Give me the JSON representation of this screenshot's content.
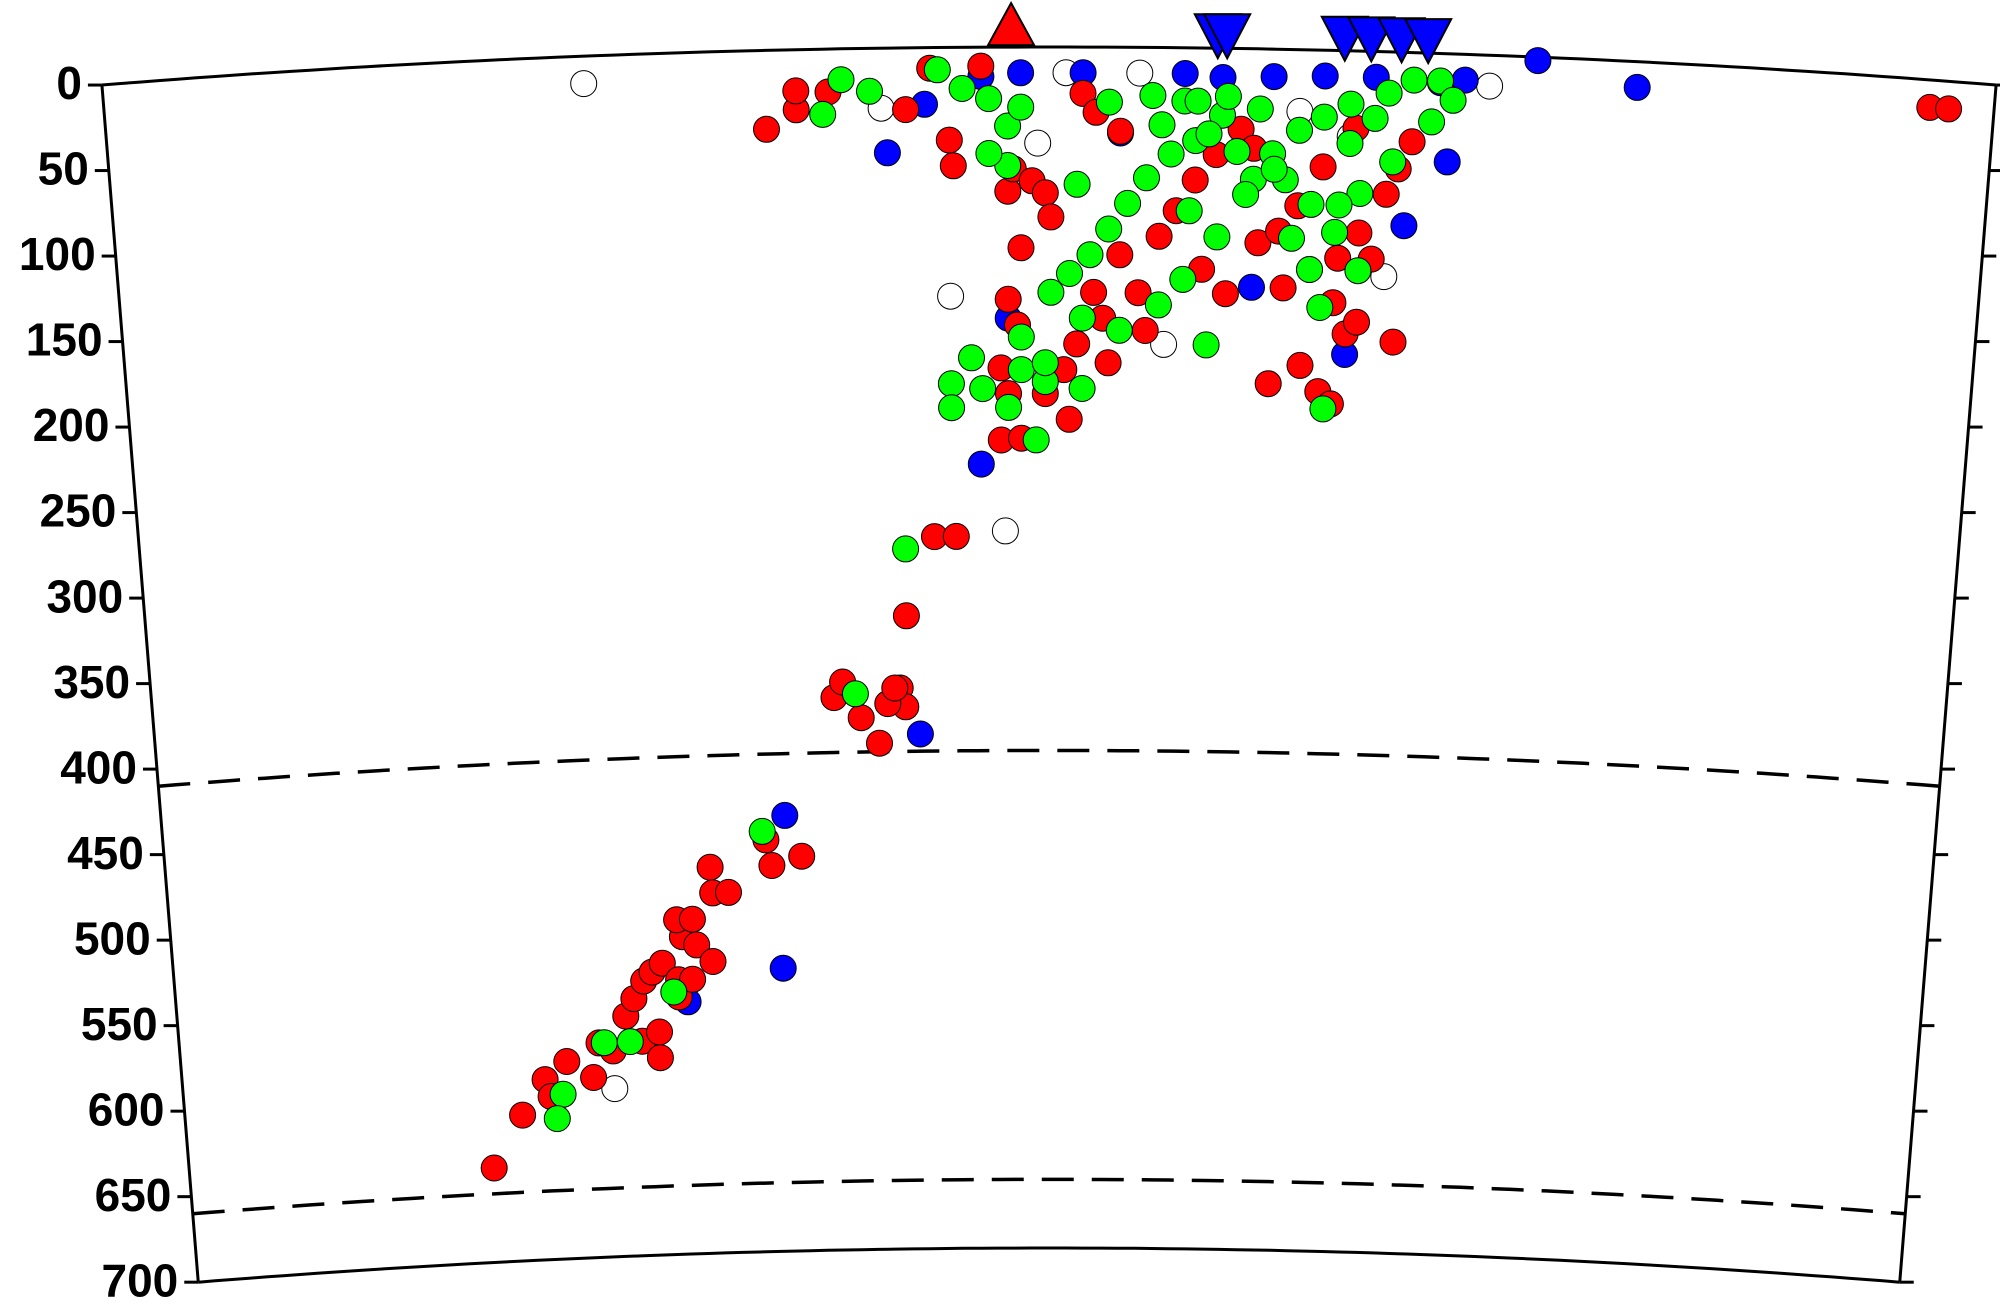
{
  "chart_data": {
    "type": "scatter",
    "xlim": [
      0,
      1000
    ],
    "ylim": [
      0,
      700
    ],
    "invert_y": true,
    "yticks": [
      0,
      50,
      100,
      150,
      200,
      250,
      300,
      350,
      400,
      450,
      500,
      550,
      600,
      650,
      700
    ],
    "reference_depths": [
      410,
      660
    ],
    "series": [
      {
        "color": "#ffffff",
        "marker": "circle",
        "x": [
          254,
          476,
          447,
          562,
          509,
          548,
          494,
          680,
          733,
          411,
          249,
          633,
          660
        ],
        "values": [
          16,
          282,
          145,
          173,
          15,
          15,
          56,
          131,
          18,
          35,
          602,
          36,
          50
        ]
      },
      {
        "color": "#0000ff",
        "marker": "circle",
        "x": [
          758,
          811,
          414,
          434,
          464,
          485,
          518,
          538,
          572,
          592,
          619,
          646,
          673,
          690,
          712,
          660,
          609,
          478,
          463,
          428,
          351,
          348,
          293,
          707,
          720
        ],
        "values": [
          2,
          15,
          61,
          33,
          17,
          15,
          15,
          50,
          15,
          17,
          16,
          15,
          15,
          101,
          63,
          177,
          139,
          158,
          243,
          400,
          446,
          535,
          553,
          17,
          15
        ]
      },
      {
        "color": "#ff0000",
        "marker": "circle",
        "x": [
          177,
          195,
          209,
          212,
          222,
          237,
          241,
          249,
          257,
          262,
          266,
          276,
          276,
          268,
          273,
          279,
          288,
          288,
          291,
          296,
          288,
          297,
          299,
          308,
          308,
          309,
          318,
          340,
          343,
          360,
          380,
          385,
          395,
          405,
          417,
          420,
          410,
          414,
          421,
          437,
          449,
          350,
          366,
          366,
          383,
          424,
          437,
          447,
          449,
          464,
          478,
          481,
          491,
          498,
          501,
          485,
          478,
          483,
          474,
          478,
          474,
          485,
          498,
          511,
          508,
          515,
          529,
          532,
          524,
          538,
          548,
          552,
          559,
          568,
          578,
          589,
          602,
          609,
          595,
          582,
          612,
          623,
          633,
          640,
          626,
          653,
          655,
          619,
          636,
          646,
          653,
          660,
          666,
          666,
          680,
          686,
          693,
          686,
          663,
          518,
          538,
          525,
          646,
          673,
          966,
          976
        ],
        "values": [
          645,
          615,
          595,
          605,
          585,
          595,
          575,
          580,
          560,
          550,
          575,
          570,
          585,
          540,
          535,
          530,
          540,
          550,
          515,
          540,
          505,
          505,
          520,
          530,
          475,
          490,
          490,
          460,
          475,
          470,
          378,
          369,
          390,
          405,
          373,
          384,
          382,
          373,
          331,
          285,
          285,
          46,
          35,
          24,
          25,
          36,
          12,
          54,
          69,
          11,
          84,
          71,
          78,
          85,
          99,
          117,
          147,
          162,
          187,
          202,
          229,
          228,
          202,
          217,
          188,
          173,
          158,
          184,
          143,
          121,
          143,
          165,
          110,
          95,
          77,
          62,
          47,
          58,
          143,
          129,
          113,
          106,
          91,
          128,
          139,
          147,
          121,
          195,
          184,
          199,
          206,
          165,
          158,
          106,
          83,
          68,
          52,
          169,
          45,
          27,
          49,
          38,
          68,
          121,
          16,
          16
        ]
      },
      {
        "color": "#00ff00",
        "marker": "circle",
        "x": [
          390,
          405,
          380,
          441,
          454,
          468,
          478,
          485,
          478,
          468,
          515,
          532,
          555,
          572,
          579,
          592,
          578,
          565,
          552,
          542,
          532,
          522,
          511,
          501,
          518,
          538,
          559,
          572,
          585,
          458,
          447,
          447,
          464,
          485,
          498,
          493,
          478,
          485,
          498,
          518,
          609,
          619,
          633,
          646,
          660,
          673,
          680,
          693,
          707,
          714,
          703,
          666,
          653,
          640,
          646,
          649,
          666,
          595,
          612,
          626,
          660,
          683,
          421,
          392,
          338,
          285,
          244,
          259,
          219,
          215,
          560,
          585,
          600,
          620,
          640,
          605,
          575,
          590,
          630,
          655
        ],
        "values": [
          18,
          25,
          38,
          13,
          24,
          30,
          46,
          35,
          69,
          62,
          80,
          32,
          28,
          31,
          31,
          39,
          54,
          62,
          76,
          91,
          106,
          121,
          132,
          143,
          158,
          165,
          150,
          135,
          173,
          181,
          196,
          210,
          199,
          188,
          195,
          229,
          210,
          169,
          184,
          199,
          76,
          61,
          47,
          39,
          54,
          39,
          24,
          16,
          16,
          27,
          40,
          83,
          106,
          128,
          150,
          209,
          128,
          28,
          35,
          76,
          31,
          64,
          292,
          376,
          455,
          547,
          575,
          575,
          604,
          618,
          45,
          50,
          60,
          70,
          90,
          85,
          95,
          110,
          110,
          90
        ]
      },
      {
        "color": "#ff0000",
        "marker": "triangle-up",
        "x": [
          480
        ]
      },
      {
        "color": "#0000ff",
        "marker": "triangle-down",
        "x": [
          589,
          594,
          656,
          670,
          686,
          700
        ]
      }
    ]
  }
}
